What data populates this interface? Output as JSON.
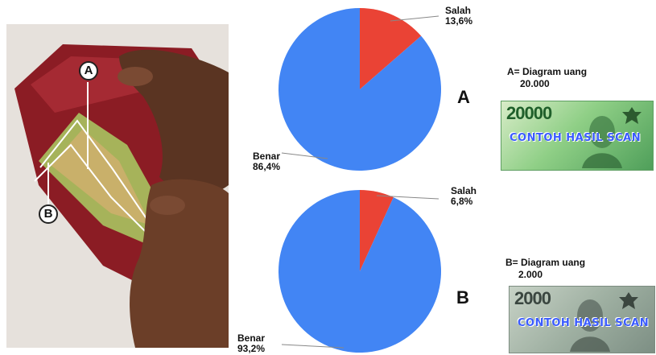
{
  "callouts": {
    "a": "A",
    "b": "B"
  },
  "pie_labels": {
    "a": {
      "salah_name": "Salah",
      "salah_pct": "13,6%",
      "benar_name": "Benar",
      "benar_pct": "86,4%"
    },
    "b": {
      "salah_name": "Salah",
      "salah_pct": "6,8%",
      "benar_name": "Benar",
      "benar_pct": "93,2%"
    }
  },
  "big_letters": {
    "a": "A",
    "b": "B"
  },
  "captions": {
    "a_line1": "A= Diagram uang",
    "a_line2": "20.000",
    "b_line1": "B= Diagram uang",
    "b_line2": "2.000"
  },
  "notes": {
    "a_denom": "20000",
    "a_stamp": "CONTOH HASIL SCAN",
    "b_denom": "2000",
    "b_stamp": "CONTOH HASIL SCAN"
  },
  "colors": {
    "benar": "#4285F4",
    "salah": "#EA4335",
    "note_a": "#6dbb6a",
    "note_b": "#8a9a8c"
  },
  "chart_data": [
    {
      "type": "pie",
      "title": "",
      "categories": [
        "Salah",
        "Benar"
      ],
      "values": [
        13.6,
        86.4
      ],
      "colors": [
        "#EA4335",
        "#4285F4"
      ]
    },
    {
      "type": "pie",
      "title": "",
      "categories": [
        "Salah",
        "Benar"
      ],
      "values": [
        6.8,
        93.2
      ],
      "colors": [
        "#EA4335",
        "#4285F4"
      ]
    }
  ]
}
